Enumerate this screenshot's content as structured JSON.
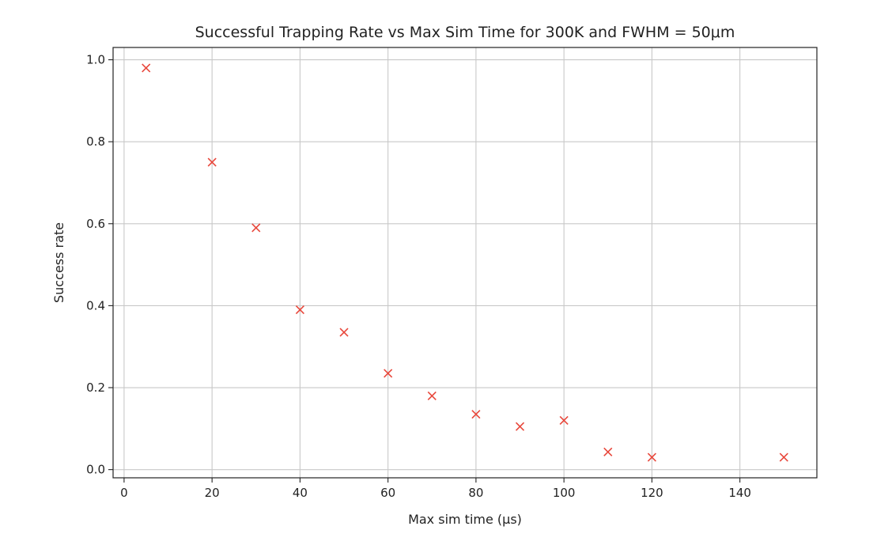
{
  "chart_data": {
    "type": "scatter",
    "title": "Successful Trapping Rate vs Max Sim Time for 300K and FWHM = 50μm",
    "xlabel": "Max sim time (μs)",
    "ylabel": "Success rate",
    "xlim": [
      -2.5,
      157.5
    ],
    "ylim": [
      -0.02,
      1.03
    ],
    "xticks": [
      0,
      20,
      40,
      60,
      80,
      100,
      120,
      140
    ],
    "xtick_labels": [
      "0",
      "20",
      "40",
      "60",
      "80",
      "100",
      "120",
      "140"
    ],
    "yticks": [
      0.0,
      0.2,
      0.4,
      0.6,
      0.8,
      1.0
    ],
    "ytick_labels": [
      "0.0",
      "0.2",
      "0.4",
      "0.6",
      "0.8",
      "1.0"
    ],
    "grid": true,
    "marker": "x",
    "marker_color": "#e8473b",
    "series": [
      {
        "x": [
          5,
          20,
          30,
          40,
          50,
          60,
          70,
          80,
          90,
          100,
          110,
          120,
          150
        ],
        "y": [
          0.98,
          0.75,
          0.59,
          0.39,
          0.335,
          0.235,
          0.18,
          0.135,
          0.105,
          0.12,
          0.043,
          0.03,
          0.03
        ]
      }
    ]
  }
}
